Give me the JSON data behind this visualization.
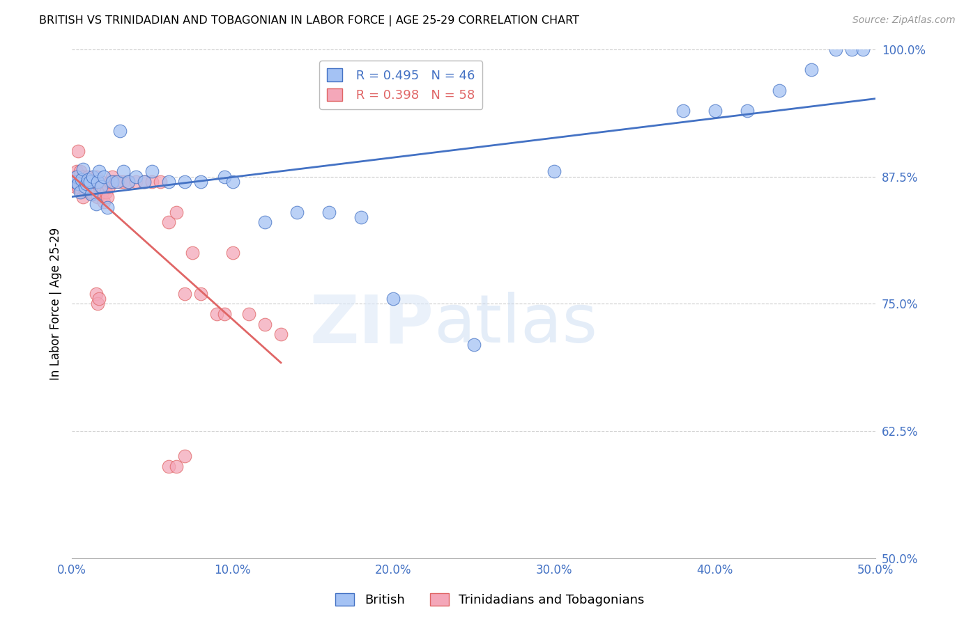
{
  "title": "BRITISH VS TRINIDADIAN AND TOBAGONIAN IN LABOR FORCE | AGE 25-29 CORRELATION CHART",
  "source": "Source: ZipAtlas.com",
  "ylabel": "In Labor Force | Age 25-29",
  "xlim": [
    0.0,
    0.5
  ],
  "ylim": [
    0.5,
    1.0
  ],
  "xticks": [
    0.0,
    0.1,
    0.2,
    0.3,
    0.4,
    0.5
  ],
  "xtick_labels": [
    "0.0%",
    "10.0%",
    "20.0%",
    "30.0%",
    "40.0%",
    "50.0%"
  ],
  "yticks": [
    0.5,
    0.625,
    0.75,
    0.875,
    1.0
  ],
  "ytick_labels": [
    "50.0%",
    "62.5%",
    "75.0%",
    "87.5%",
    "100.0%"
  ],
  "blue_R": 0.495,
  "blue_N": 46,
  "pink_R": 0.398,
  "pink_N": 58,
  "blue_color": "#a4c2f4",
  "pink_color": "#f4a7b9",
  "blue_line_color": "#4472c4",
  "pink_line_color": "#e06666",
  "legend_label_blue": "British",
  "legend_label_pink": "Trinidadians and Tobagonians",
  "blue_x": [
    0.002,
    0.003,
    0.004,
    0.005,
    0.006,
    0.007,
    0.008,
    0.009,
    0.01,
    0.011,
    0.012,
    0.013,
    0.015,
    0.016,
    0.017,
    0.018,
    0.02,
    0.022,
    0.025,
    0.028,
    0.03,
    0.032,
    0.035,
    0.04,
    0.045,
    0.05,
    0.06,
    0.07,
    0.08,
    0.095,
    0.1,
    0.12,
    0.14,
    0.16,
    0.18,
    0.2,
    0.25,
    0.3,
    0.38,
    0.4,
    0.42,
    0.44,
    0.46,
    0.475,
    0.485,
    0.492
  ],
  "blue_y": [
    0.87,
    0.875,
    0.868,
    0.86,
    0.872,
    0.882,
    0.865,
    0.868,
    0.872,
    0.87,
    0.858,
    0.875,
    0.848,
    0.87,
    0.88,
    0.865,
    0.875,
    0.845,
    0.87,
    0.87,
    0.92,
    0.88,
    0.87,
    0.875,
    0.87,
    0.88,
    0.87,
    0.87,
    0.87,
    0.875,
    0.87,
    0.83,
    0.84,
    0.84,
    0.835,
    0.755,
    0.71,
    0.88,
    0.94,
    0.94,
    0.94,
    0.96,
    0.98,
    1.0,
    1.0,
    1.0
  ],
  "pink_x": [
    0.001,
    0.002,
    0.002,
    0.003,
    0.003,
    0.004,
    0.004,
    0.005,
    0.005,
    0.006,
    0.006,
    0.007,
    0.007,
    0.008,
    0.008,
    0.009,
    0.01,
    0.01,
    0.011,
    0.012,
    0.013,
    0.014,
    0.015,
    0.016,
    0.017,
    0.018,
    0.019,
    0.02,
    0.021,
    0.022,
    0.023,
    0.024,
    0.025,
    0.027,
    0.03,
    0.032,
    0.035,
    0.04,
    0.045,
    0.05,
    0.055,
    0.06,
    0.065,
    0.07,
    0.075,
    0.08,
    0.09,
    0.095,
    0.1,
    0.11,
    0.12,
    0.13,
    0.015,
    0.016,
    0.017,
    0.06,
    0.065,
    0.07
  ],
  "pink_y": [
    0.87,
    0.875,
    0.865,
    0.88,
    0.87,
    0.9,
    0.865,
    0.88,
    0.87,
    0.87,
    0.86,
    0.875,
    0.855,
    0.87,
    0.862,
    0.87,
    0.875,
    0.87,
    0.86,
    0.86,
    0.858,
    0.87,
    0.875,
    0.855,
    0.865,
    0.87,
    0.86,
    0.85,
    0.86,
    0.855,
    0.865,
    0.87,
    0.875,
    0.87,
    0.87,
    0.87,
    0.87,
    0.87,
    0.87,
    0.87,
    0.87,
    0.83,
    0.84,
    0.76,
    0.8,
    0.76,
    0.74,
    0.74,
    0.8,
    0.74,
    0.73,
    0.72,
    0.76,
    0.75,
    0.755,
    0.59,
    0.59,
    0.6
  ]
}
